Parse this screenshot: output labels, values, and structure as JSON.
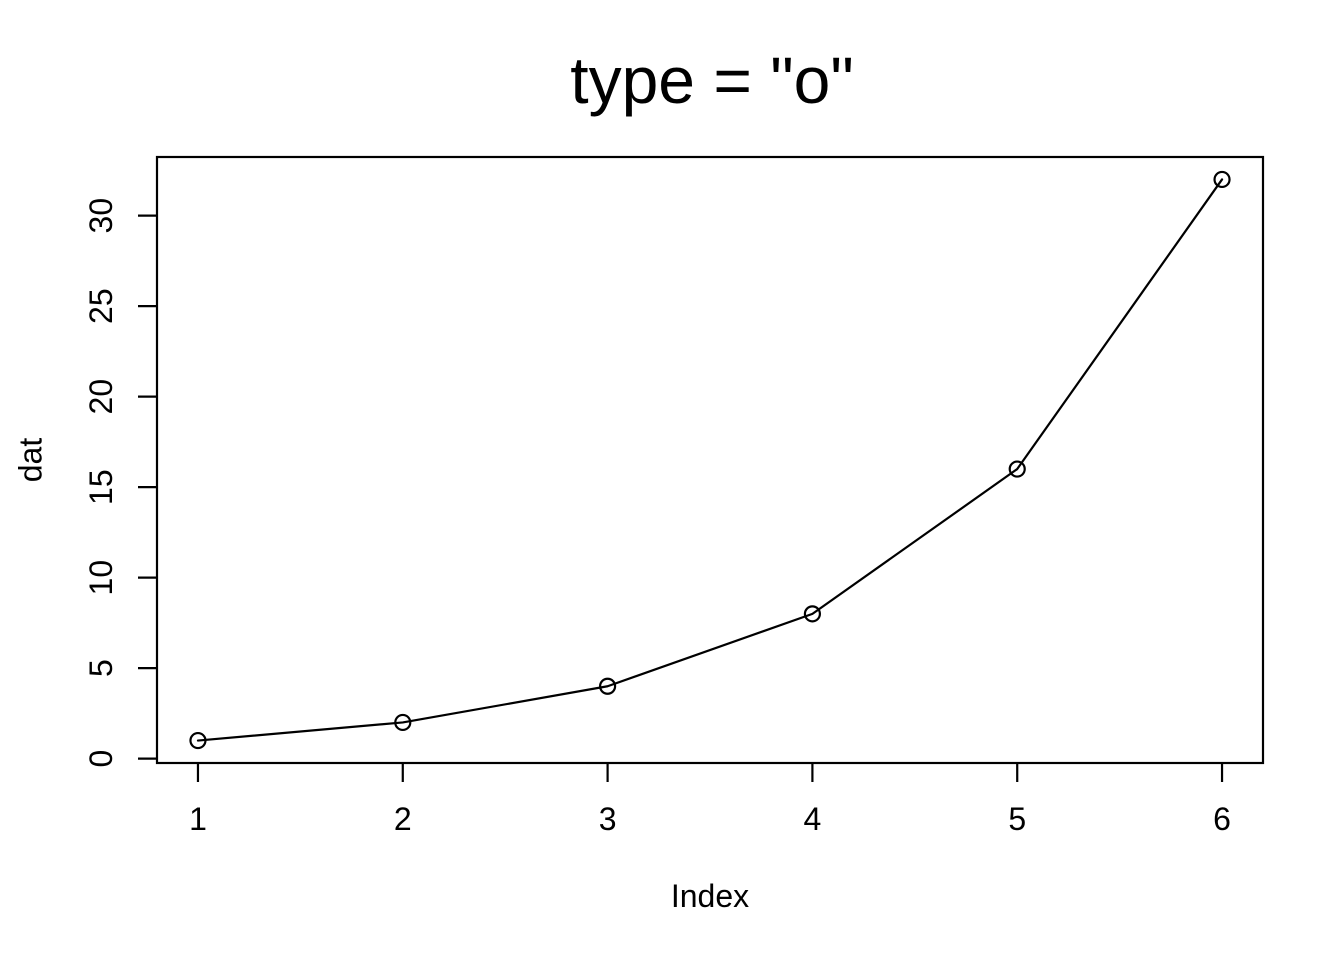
{
  "figure": {
    "title": "type = \"o\"",
    "xlabel": "Index",
    "ylabel": "dat",
    "background_color": "#ffffff",
    "foreground_color": "#000000"
  },
  "chart_data": {
    "type": "line",
    "title": "type = \"o\"",
    "xlabel": "Index",
    "ylabel": "dat",
    "series": [
      {
        "name": "dat",
        "x": [
          1,
          2,
          3,
          4,
          5,
          6
        ],
        "values": [
          1,
          2,
          4,
          8,
          16,
          32
        ]
      }
    ],
    "marker": "open-circle",
    "line_color": "#000000",
    "marker_color": "#000000",
    "x_ticks": [
      1,
      2,
      3,
      4,
      5,
      6
    ],
    "y_ticks": [
      0,
      5,
      10,
      15,
      20,
      25,
      30
    ],
    "xlim": [
      0.8,
      6.2
    ],
    "ylim": [
      -0.24,
      33.24
    ],
    "grid": false,
    "legend": null,
    "plot_style": "r-base-boxed-axes"
  }
}
